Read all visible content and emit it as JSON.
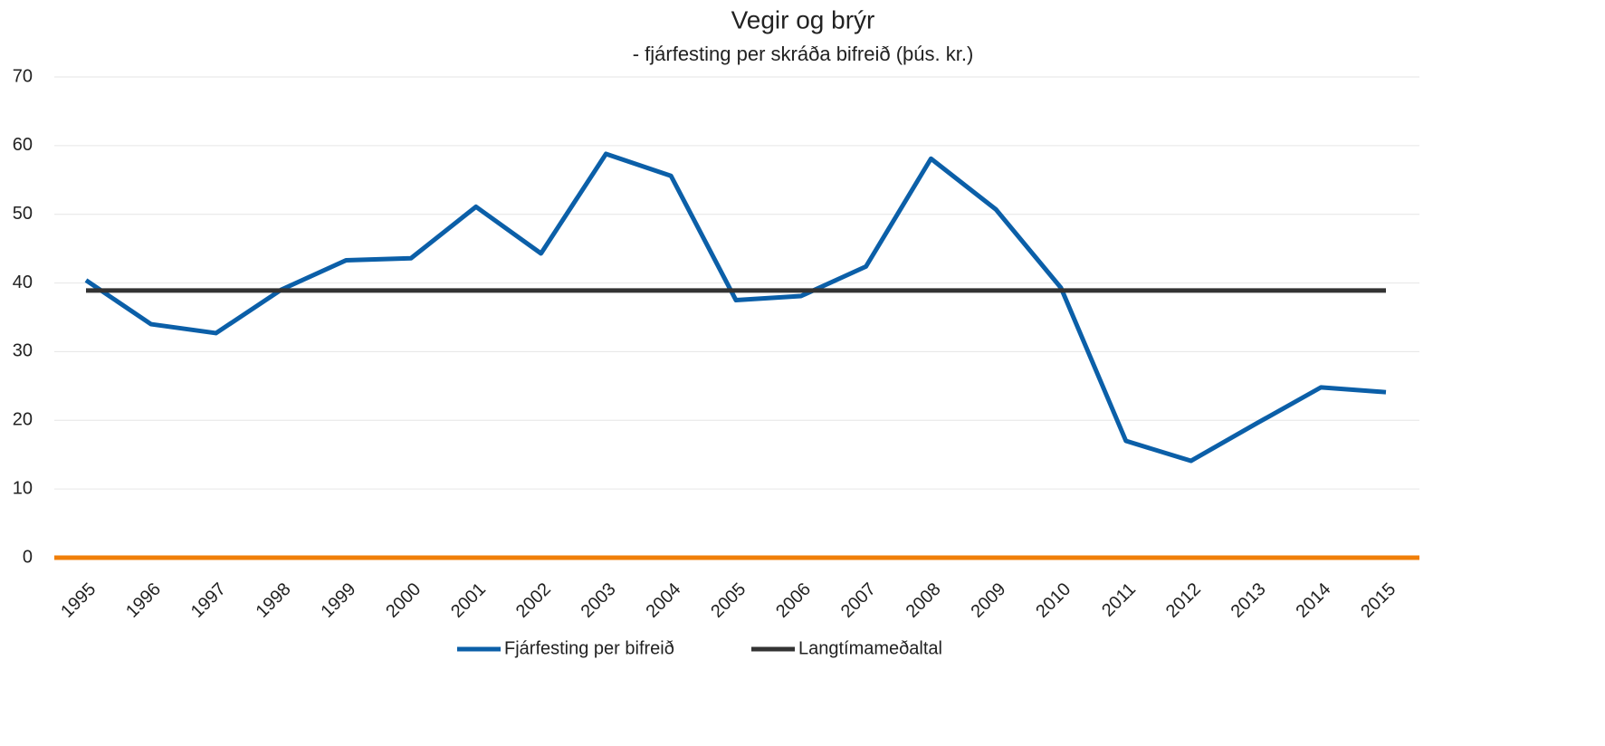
{
  "chart_data": {
    "type": "line",
    "title": "Vegir og brýr",
    "subtitle": "- fjárfesting per skráða bifreið (þús. kr.)",
    "categories": [
      "1995",
      "1996",
      "1997",
      "1998",
      "1999",
      "2000",
      "2001",
      "2002",
      "2003",
      "2004",
      "2005",
      "2006",
      "2007",
      "2008",
      "2009",
      "2010",
      "2011",
      "2012",
      "2013",
      "2014",
      "2015"
    ],
    "series": [
      {
        "name": "Fjárfesting per bifreið",
        "color": "#0b5fa8",
        "values": [
          40.4,
          34.0,
          32.7,
          39.0,
          43.3,
          43.6,
          51.1,
          44.3,
          58.8,
          55.6,
          37.5,
          38.1,
          42.4,
          58.1,
          50.7,
          39.3,
          17.0,
          14.1,
          19.5,
          24.8,
          24.1
        ]
      },
      {
        "name": "Langtímameðaltal",
        "color": "#333333",
        "values": [
          38.9,
          38.9,
          38.9,
          38.9,
          38.9,
          38.9,
          38.9,
          38.9,
          38.9,
          38.9,
          38.9,
          38.9,
          38.9,
          38.9,
          38.9,
          38.9,
          38.9,
          38.9,
          38.9,
          38.9,
          38.9
        ]
      }
    ],
    "ylim": [
      0,
      70
    ],
    "yticks": [
      0,
      10,
      20,
      30,
      40,
      50,
      60,
      70
    ],
    "grid": true,
    "x_axis_color": "#f07f09",
    "legend": "bottom"
  }
}
